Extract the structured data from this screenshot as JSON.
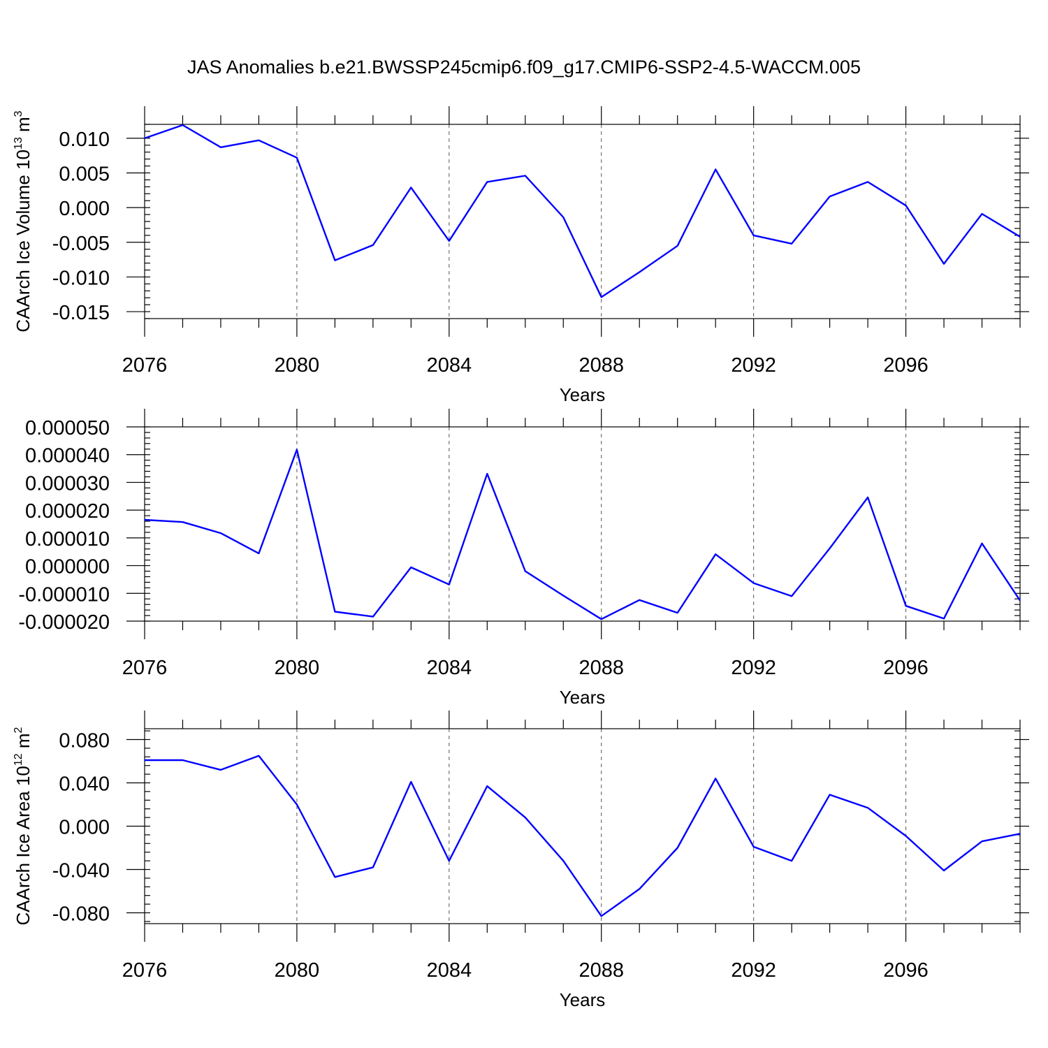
{
  "figure": {
    "title": "JAS Anomalies b.e21.BWSSP245cmip6.f09_g17.CMIP6-SSP2-4.5-WACCM.005",
    "line_color": "#0000ff"
  },
  "chart_data": [
    {
      "type": "line",
      "title": "",
      "xlabel": "Years",
      "ylabel": "CAArch Ice Volume 10",
      "ylabel_exponent": "13",
      "ylabel_unit": " m",
      "ylabel_unit_exponent": "3",
      "xlim": [
        2076,
        2099
      ],
      "ylim": [
        -0.016,
        0.012
      ],
      "xticks": [
        2076,
        2080,
        2084,
        2088,
        2092,
        2096
      ],
      "xtick_labels": [
        "2076",
        "2080",
        "2084",
        "2088",
        "2092",
        "2096"
      ],
      "yticks": [
        -0.015,
        -0.01,
        -0.005,
        0.0,
        0.005,
        0.01
      ],
      "ytick_labels": [
        "-0.015",
        "-0.010",
        "-0.005",
        "0.000",
        "0.005",
        "0.010"
      ],
      "grid": "dashed vertical at major x ticks",
      "series": [
        {
          "x": [
            2076,
            2077,
            2078,
            2079,
            2080,
            2081,
            2082,
            2083,
            2084,
            2085,
            2086,
            2087,
            2088,
            2089,
            2090,
            2091,
            2092,
            2093,
            2094,
            2095,
            2096,
            2097,
            2098,
            2099
          ],
          "values": [
            0.01,
            0.0119,
            0.0087,
            0.0097,
            0.0072,
            -0.0076,
            -0.0054,
            0.0029,
            -0.0048,
            0.0037,
            0.0046,
            -0.0014,
            -0.0129,
            -0.0093,
            -0.0055,
            0.0055,
            -0.004,
            -0.0052,
            0.0016,
            0.0037,
            0.0003,
            -0.0081,
            -0.0009,
            -0.0042
          ]
        }
      ]
    },
    {
      "type": "line",
      "title": "",
      "xlabel": "Years",
      "ylabel": "",
      "xlim": [
        2076,
        2099
      ],
      "ylim": [
        -2e-05,
        5e-05
      ],
      "xticks": [
        2076,
        2080,
        2084,
        2088,
        2092,
        2096
      ],
      "xtick_labels": [
        "2076",
        "2080",
        "2084",
        "2088",
        "2092",
        "2096"
      ],
      "yticks": [
        -2e-05,
        -1e-05,
        0.0,
        1e-05,
        2e-05,
        3e-05,
        4e-05,
        5e-05
      ],
      "ytick_labels": [
        "-0.000020",
        "-0.000010",
        "0.000000",
        "0.000010",
        "0.000020",
        "0.000030",
        "0.000040",
        "0.000050"
      ],
      "grid": "dashed vertical at major x ticks",
      "series": [
        {
          "x": [
            2076,
            2077,
            2078,
            2079,
            2080,
            2081,
            2082,
            2083,
            2084,
            2085,
            2086,
            2087,
            2088,
            2089,
            2090,
            2091,
            2092,
            2093,
            2094,
            2095,
            2096,
            2097,
            2098,
            2099
          ],
          "values": [
            1.65e-05,
            1.57e-05,
            1.17e-05,
            4.4e-06,
            4.18e-05,
            -1.66e-05,
            -1.84e-05,
            -6e-07,
            -6.8e-06,
            3.31e-05,
            -2e-06,
            -1.08e-05,
            -1.93e-05,
            -1.24e-05,
            -1.7e-05,
            4.1e-06,
            -6.3e-06,
            -1.1e-05,
            6.2e-06,
            2.46e-05,
            -1.45e-05,
            -1.91e-05,
            8e-06,
            -1.26e-05
          ]
        }
      ]
    },
    {
      "type": "line",
      "title": "",
      "xlabel": "Years",
      "ylabel": "CAArch Ice Area 10",
      "ylabel_exponent": "12",
      "ylabel_unit": " m",
      "ylabel_unit_exponent": "2",
      "xlim": [
        2076,
        2099
      ],
      "ylim": [
        -0.09,
        0.09
      ],
      "xticks": [
        2076,
        2080,
        2084,
        2088,
        2092,
        2096
      ],
      "xtick_labels": [
        "2076",
        "2080",
        "2084",
        "2088",
        "2092",
        "2096"
      ],
      "yticks": [
        -0.08,
        -0.04,
        0.0,
        0.04,
        0.08
      ],
      "ytick_labels": [
        "-0.080",
        "-0.040",
        "0.000",
        "0.040",
        "0.080"
      ],
      "grid": "dashed vertical at major x ticks",
      "series": [
        {
          "x": [
            2076,
            2077,
            2078,
            2079,
            2080,
            2081,
            2082,
            2083,
            2084,
            2085,
            2086,
            2087,
            2088,
            2089,
            2090,
            2091,
            2092,
            2093,
            2094,
            2095,
            2096,
            2097,
            2098,
            2099
          ],
          "values": [
            0.061,
            0.061,
            0.052,
            0.065,
            0.02,
            -0.047,
            -0.038,
            0.041,
            -0.032,
            0.037,
            0.008,
            -0.032,
            -0.083,
            -0.058,
            -0.02,
            0.044,
            -0.019,
            -0.032,
            0.029,
            0.017,
            -0.009,
            -0.041,
            -0.014,
            -0.007
          ]
        }
      ]
    }
  ]
}
